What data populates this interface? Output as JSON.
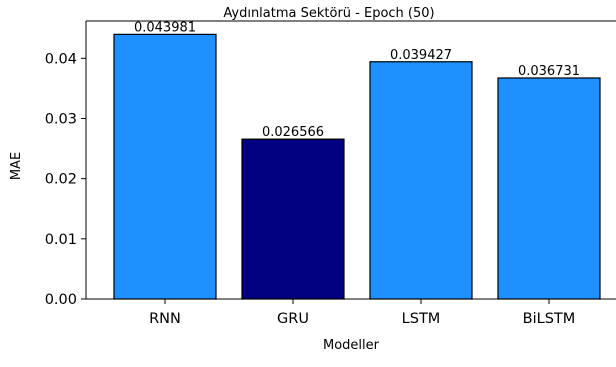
{
  "chart_data": {
    "type": "bar",
    "title": "Aydınlatma Sektörü - Epoch (50)",
    "xlabel": "Modeller",
    "ylabel": "MAE",
    "categories": [
      "RNN",
      "GRU",
      "LSTM",
      "BiLSTM"
    ],
    "values": [
      0.043981,
      0.026566,
      0.039427,
      0.036731
    ],
    "data_labels": [
      "0.043981",
      "0.026566",
      "0.039427",
      "0.036731"
    ],
    "bar_colors": [
      "#1e90ff",
      "#000080",
      "#1e90ff",
      "#1e90ff"
    ],
    "edge_color": "#000000",
    "ylim": [
      0,
      0.0462
    ],
    "yticks": [
      0,
      0.01,
      0.02,
      0.03,
      0.04
    ],
    "ytick_labels": [
      "0.00",
      "0.01",
      "0.02",
      "0.03",
      "0.04"
    ],
    "grid": false,
    "legend": "none"
  }
}
